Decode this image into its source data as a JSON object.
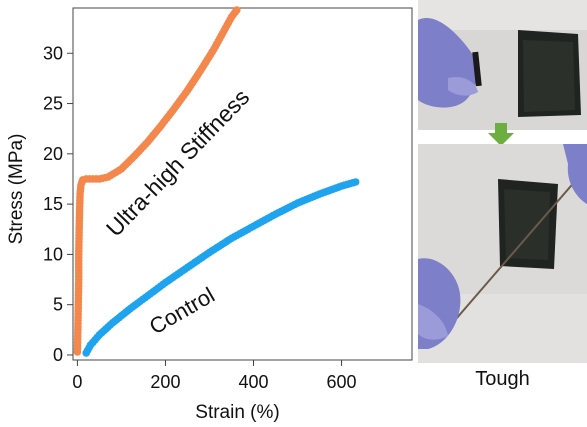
{
  "chart_data": {
    "type": "scatter",
    "xlabel": "Strain (%)",
    "ylabel": "Stress (MPa)",
    "xlim": [
      -10,
      760
    ],
    "ylim": [
      -0.5,
      34.5
    ],
    "xticks": [
      0,
      200,
      400,
      600
    ],
    "yticks": [
      0,
      5,
      10,
      15,
      20,
      25,
      30
    ],
    "grid": false,
    "series": [
      {
        "name": "Ultra-high Stiffness",
        "color": "#f4874b",
        "points": [
          [
            0,
            0.3
          ],
          [
            1,
            2.5
          ],
          [
            2,
            5
          ],
          [
            3,
            7.5
          ],
          [
            3,
            10
          ],
          [
            4,
            12.5
          ],
          [
            5,
            14.5
          ],
          [
            6,
            16
          ],
          [
            8,
            16.9
          ],
          [
            12,
            17.4
          ],
          [
            20,
            17.5
          ],
          [
            35,
            17.5
          ],
          [
            50,
            17.5
          ],
          [
            70,
            17.7
          ],
          [
            100,
            18.5
          ],
          [
            130,
            19.8
          ],
          [
            160,
            21.2
          ],
          [
            190,
            22.8
          ],
          [
            220,
            24.5
          ],
          [
            250,
            26.3
          ],
          [
            280,
            28.3
          ],
          [
            310,
            30.4
          ],
          [
            330,
            32
          ],
          [
            350,
            33.6
          ],
          [
            362,
            34.3
          ]
        ]
      },
      {
        "name": "Control",
        "color": "#1ea4ef",
        "points": [
          [
            20,
            0.2
          ],
          [
            30,
            1
          ],
          [
            50,
            2
          ],
          [
            80,
            3.2
          ],
          [
            120,
            4.6
          ],
          [
            160,
            5.9
          ],
          [
            200,
            7.2
          ],
          [
            250,
            8.7
          ],
          [
            300,
            10.2
          ],
          [
            350,
            11.6
          ],
          [
            400,
            12.8
          ],
          [
            450,
            14
          ],
          [
            500,
            15.1
          ],
          [
            550,
            16
          ],
          [
            600,
            16.8
          ],
          [
            632,
            17.2
          ]
        ]
      }
    ],
    "annotations": [
      {
        "text": "Ultra-high Stiffness",
        "series": 0
      },
      {
        "text": "Control",
        "series": 1
      }
    ]
  },
  "panel": {
    "caption": "Tough",
    "arrow_color": "#6cae3f",
    "glove_color": "#7d7fc9",
    "film_color": "#1f2420"
  }
}
